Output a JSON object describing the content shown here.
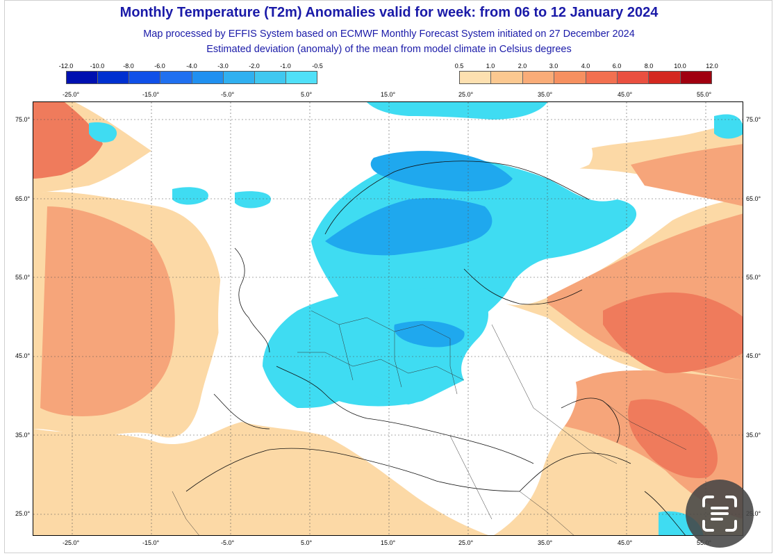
{
  "header": {
    "title": "Monthly Temperature (T2m) Anomalies valid for week: from 06 to 12 January 2024",
    "subtitle1": "Map processed by EFFIS System based on ECMWF Monthly Forecast System initiated on 27 December 2024",
    "subtitle2": "Estimated deviation (anomaly) of the mean from model climate in Celsius degrees"
  },
  "legend_cold": {
    "ticks": [
      "-12.0",
      "-10.0",
      "-8.0",
      "-6.0",
      "-4.0",
      "-3.0",
      "-2.0",
      "-1.0",
      "-0.5"
    ],
    "colors": [
      "#0010b0",
      "#0030d0",
      "#1050e8",
      "#2070f0",
      "#2090f0",
      "#30b0f0",
      "#40c8f0",
      "#50e0f8"
    ]
  },
  "legend_warm": {
    "ticks": [
      "0.5",
      "1.0",
      "2.0",
      "3.0",
      "4.0",
      "6.0",
      "8.0",
      "10.0",
      "12.0"
    ],
    "colors": [
      "#fde0b0",
      "#fbc890",
      "#f9ac78",
      "#f69060",
      "#f27050",
      "#ea5040",
      "#d42820",
      "#a00010"
    ]
  },
  "map": {
    "x_labels_top": [
      "-25.0°",
      "-15.0°",
      "-5.0°",
      "5.0°",
      "15.0°",
      "25.0°",
      "35.0°",
      "45.0°",
      "55.0°"
    ],
    "x_labels_bottom": [
      "-25.0°",
      "-15.0°",
      "-5.0°",
      "5.0°",
      "15.0°",
      "25.0°",
      "35.0°",
      "45.0°",
      "55.0°"
    ],
    "y_labels": [
      "75.0°",
      "65.0°",
      "55.0°",
      "45.0°",
      "35.0°",
      "25.0°"
    ],
    "colors": {
      "cold": "#3fdcf2",
      "cold_dark": "#1fa8ee",
      "warm_light": "#fcd9a6",
      "warm": "#f6a57a",
      "warm_dark": "#ef7b5c",
      "hot": "#e8503e"
    }
  },
  "overlay": {
    "icon": "text-scan-icon"
  }
}
